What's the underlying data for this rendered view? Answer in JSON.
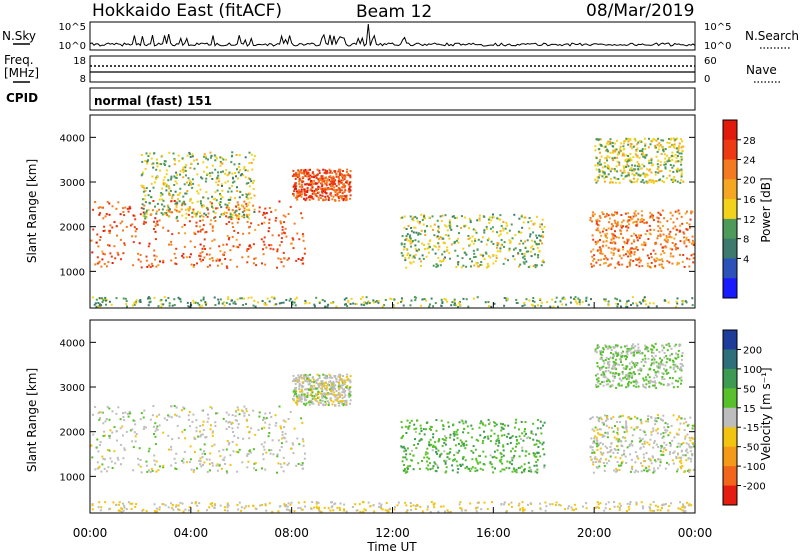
{
  "header": {
    "station": "Hokkaido East (fitACF)",
    "beam": "Beam 12",
    "date": "08/Mar/2019"
  },
  "noise_panel": {
    "left_label": "N.Sky",
    "right_label": "N.Search",
    "left_ticks": [
      "10^5",
      "10^0"
    ],
    "right_ticks": [
      "10^5",
      "10^0"
    ]
  },
  "freq_panel": {
    "left_label_1": "Freq.",
    "left_label_2": "[MHz]",
    "right_label": "Nave",
    "left_ticks": [
      "18",
      "8"
    ],
    "right_ticks": [
      "60",
      "0"
    ]
  },
  "cpid_panel": {
    "label": "CPID",
    "mode": "normal (fast) 151"
  },
  "axes": {
    "ylabel": "Slant Range [km]",
    "xlabel": "Time UT",
    "y_ticks": [
      "1000",
      "2000",
      "3000",
      "4000"
    ],
    "x_ticks": [
      "00:00",
      "04:00",
      "08:00",
      "12:00",
      "16:00",
      "20:00",
      "00:00"
    ]
  },
  "power_colorbar": {
    "label": "Power [dB]",
    "ticks": [
      "4",
      "8",
      "12",
      "16",
      "20",
      "24",
      "28"
    ],
    "colors": [
      "#1a1aff",
      "#2a52b8",
      "#3c7a6e",
      "#4e9a5a",
      "#f2d21a",
      "#f5a623",
      "#f47a1f",
      "#ee3a12",
      "#e11a0c"
    ]
  },
  "velocity_colorbar": {
    "label": "Velocity [m s⁻¹]",
    "ticks": [
      "200",
      "100",
      "50",
      "15",
      "-15",
      "-50",
      "-100",
      "-200"
    ],
    "colors": [
      "#1e3c9a",
      "#2d6f7a",
      "#3d9a52",
      "#58c02a",
      "#bdbdbd",
      "#f2c40f",
      "#f59a18",
      "#f1661b",
      "#e51c10"
    ]
  },
  "chart_data": [
    {
      "type": "heatmap",
      "title": "Power",
      "xlabel": "Time UT",
      "ylabel": "Slant Range [km]",
      "xlim": [
        "00:00",
        "24:00"
      ],
      "ylim": [
        180,
        4500
      ],
      "colorbar": {
        "label": "Power [dB]",
        "range": [
          0,
          32
        ]
      },
      "regions": [
        {
          "name": "evening-band",
          "t_start": 0.0,
          "t_end": 8.5,
          "range_start": 1100,
          "range_end": 2600,
          "value_db": 26
        },
        {
          "name": "high-band",
          "t_start": 8.0,
          "t_end": 10.3,
          "range_start": 2600,
          "range_end": 3300,
          "value_db": 27
        },
        {
          "name": "upper-arc",
          "t_start": 2.0,
          "t_end": 6.5,
          "range_start": 2200,
          "range_end": 3700,
          "value_db": 14
        },
        {
          "name": "morning-streaks",
          "t_start": 12.3,
          "t_end": 18.0,
          "range_start": 1100,
          "range_end": 2300,
          "value_db": 14
        },
        {
          "name": "night-band",
          "t_start": 19.8,
          "t_end": 24.0,
          "range_start": 1100,
          "range_end": 2400,
          "value_db": 24
        },
        {
          "name": "night-upper",
          "t_start": 20.0,
          "t_end": 23.5,
          "range_start": 3000,
          "range_end": 4000,
          "value_db": 15
        },
        {
          "name": "near-range",
          "t_start": 0.0,
          "t_end": 24.0,
          "range_start": 180,
          "range_end": 450,
          "value_db": 12
        }
      ]
    },
    {
      "type": "heatmap",
      "title": "Velocity",
      "xlabel": "Time UT",
      "ylabel": "Slant Range [km]",
      "xlim": [
        "00:00",
        "24:00"
      ],
      "ylim": [
        180,
        4500
      ],
      "colorbar": {
        "label": "Velocity [m s-1]",
        "range": [
          -200,
          200
        ]
      },
      "regions": [
        {
          "name": "evening-band",
          "t_start": 0.0,
          "t_end": 8.5,
          "range_start": 1100,
          "range_end": 2600,
          "value_ms": 0
        },
        {
          "name": "high-band",
          "t_start": 8.0,
          "t_end": 10.3,
          "range_start": 2600,
          "range_end": 3300,
          "value_ms": 0
        },
        {
          "name": "morning-streaks",
          "t_start": 12.3,
          "t_end": 18.0,
          "range_start": 1100,
          "range_end": 2300,
          "value_ms": 60
        },
        {
          "name": "night-band",
          "t_start": 19.8,
          "t_end": 24.0,
          "range_start": 1100,
          "range_end": 2400,
          "value_ms": 0
        },
        {
          "name": "night-upper",
          "t_start": 20.0,
          "t_end": 23.5,
          "range_start": 3000,
          "range_end": 4000,
          "value_ms": 30
        },
        {
          "name": "near-range",
          "t_start": 0.0,
          "t_end": 24.0,
          "range_start": 180,
          "range_end": 450,
          "value_ms": -30
        }
      ]
    }
  ]
}
